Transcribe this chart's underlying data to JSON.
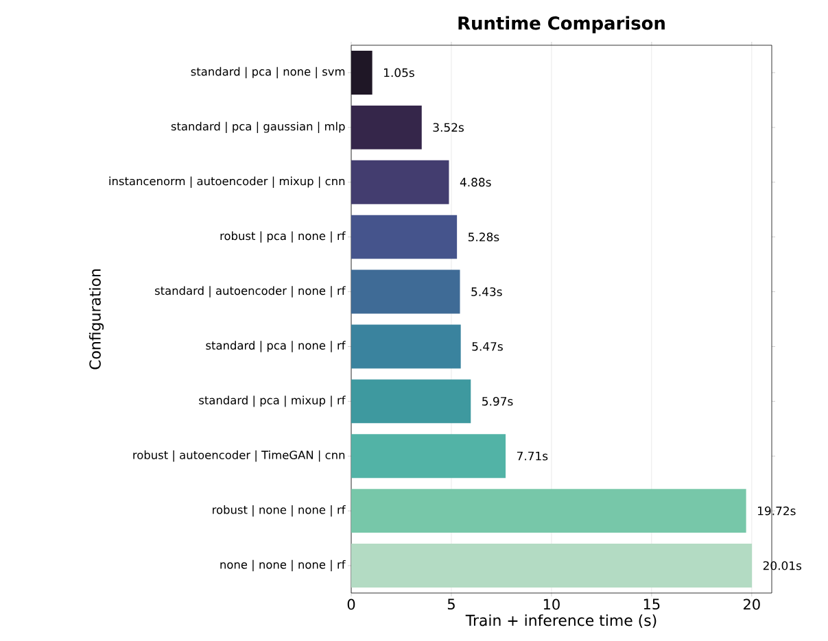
{
  "chart_data": {
    "type": "bar",
    "orientation": "horizontal",
    "title": "Runtime Comparison",
    "xlabel": "Train + inference time (s)",
    "ylabel": "Configuration",
    "categories": [
      "standard | pca | none | svm",
      "standard | pca | gaussian | mlp",
      "instancenorm | autoencoder | mixup | cnn",
      "robust | pca | none | rf",
      "standard | autoencoder | none | rf",
      "standard | pca | none | rf",
      "standard | pca | mixup | rf",
      "robust | autoencoder | TimeGAN | cnn",
      "robust | none | none | rf",
      "none | none | none | rf"
    ],
    "values": [
      1.05,
      3.52,
      4.88,
      5.28,
      5.43,
      5.47,
      5.97,
      7.71,
      19.72,
      20.01
    ],
    "value_labels": [
      "1.05s",
      "3.52s",
      "4.88s",
      "5.28s",
      "5.43s",
      "5.47s",
      "5.97s",
      "7.71s",
      "19.72s",
      "20.01s"
    ],
    "colors": [
      "#1f1726",
      "#35264a",
      "#433d6f",
      "#45548c",
      "#3f6b96",
      "#3a839e",
      "#3e999f",
      "#52b3a6",
      "#77c7a9",
      "#b3dbc3"
    ],
    "xlim": [
      0,
      21.0
    ],
    "xticks": [
      0,
      5,
      10,
      15,
      20
    ],
    "grid": "x"
  }
}
